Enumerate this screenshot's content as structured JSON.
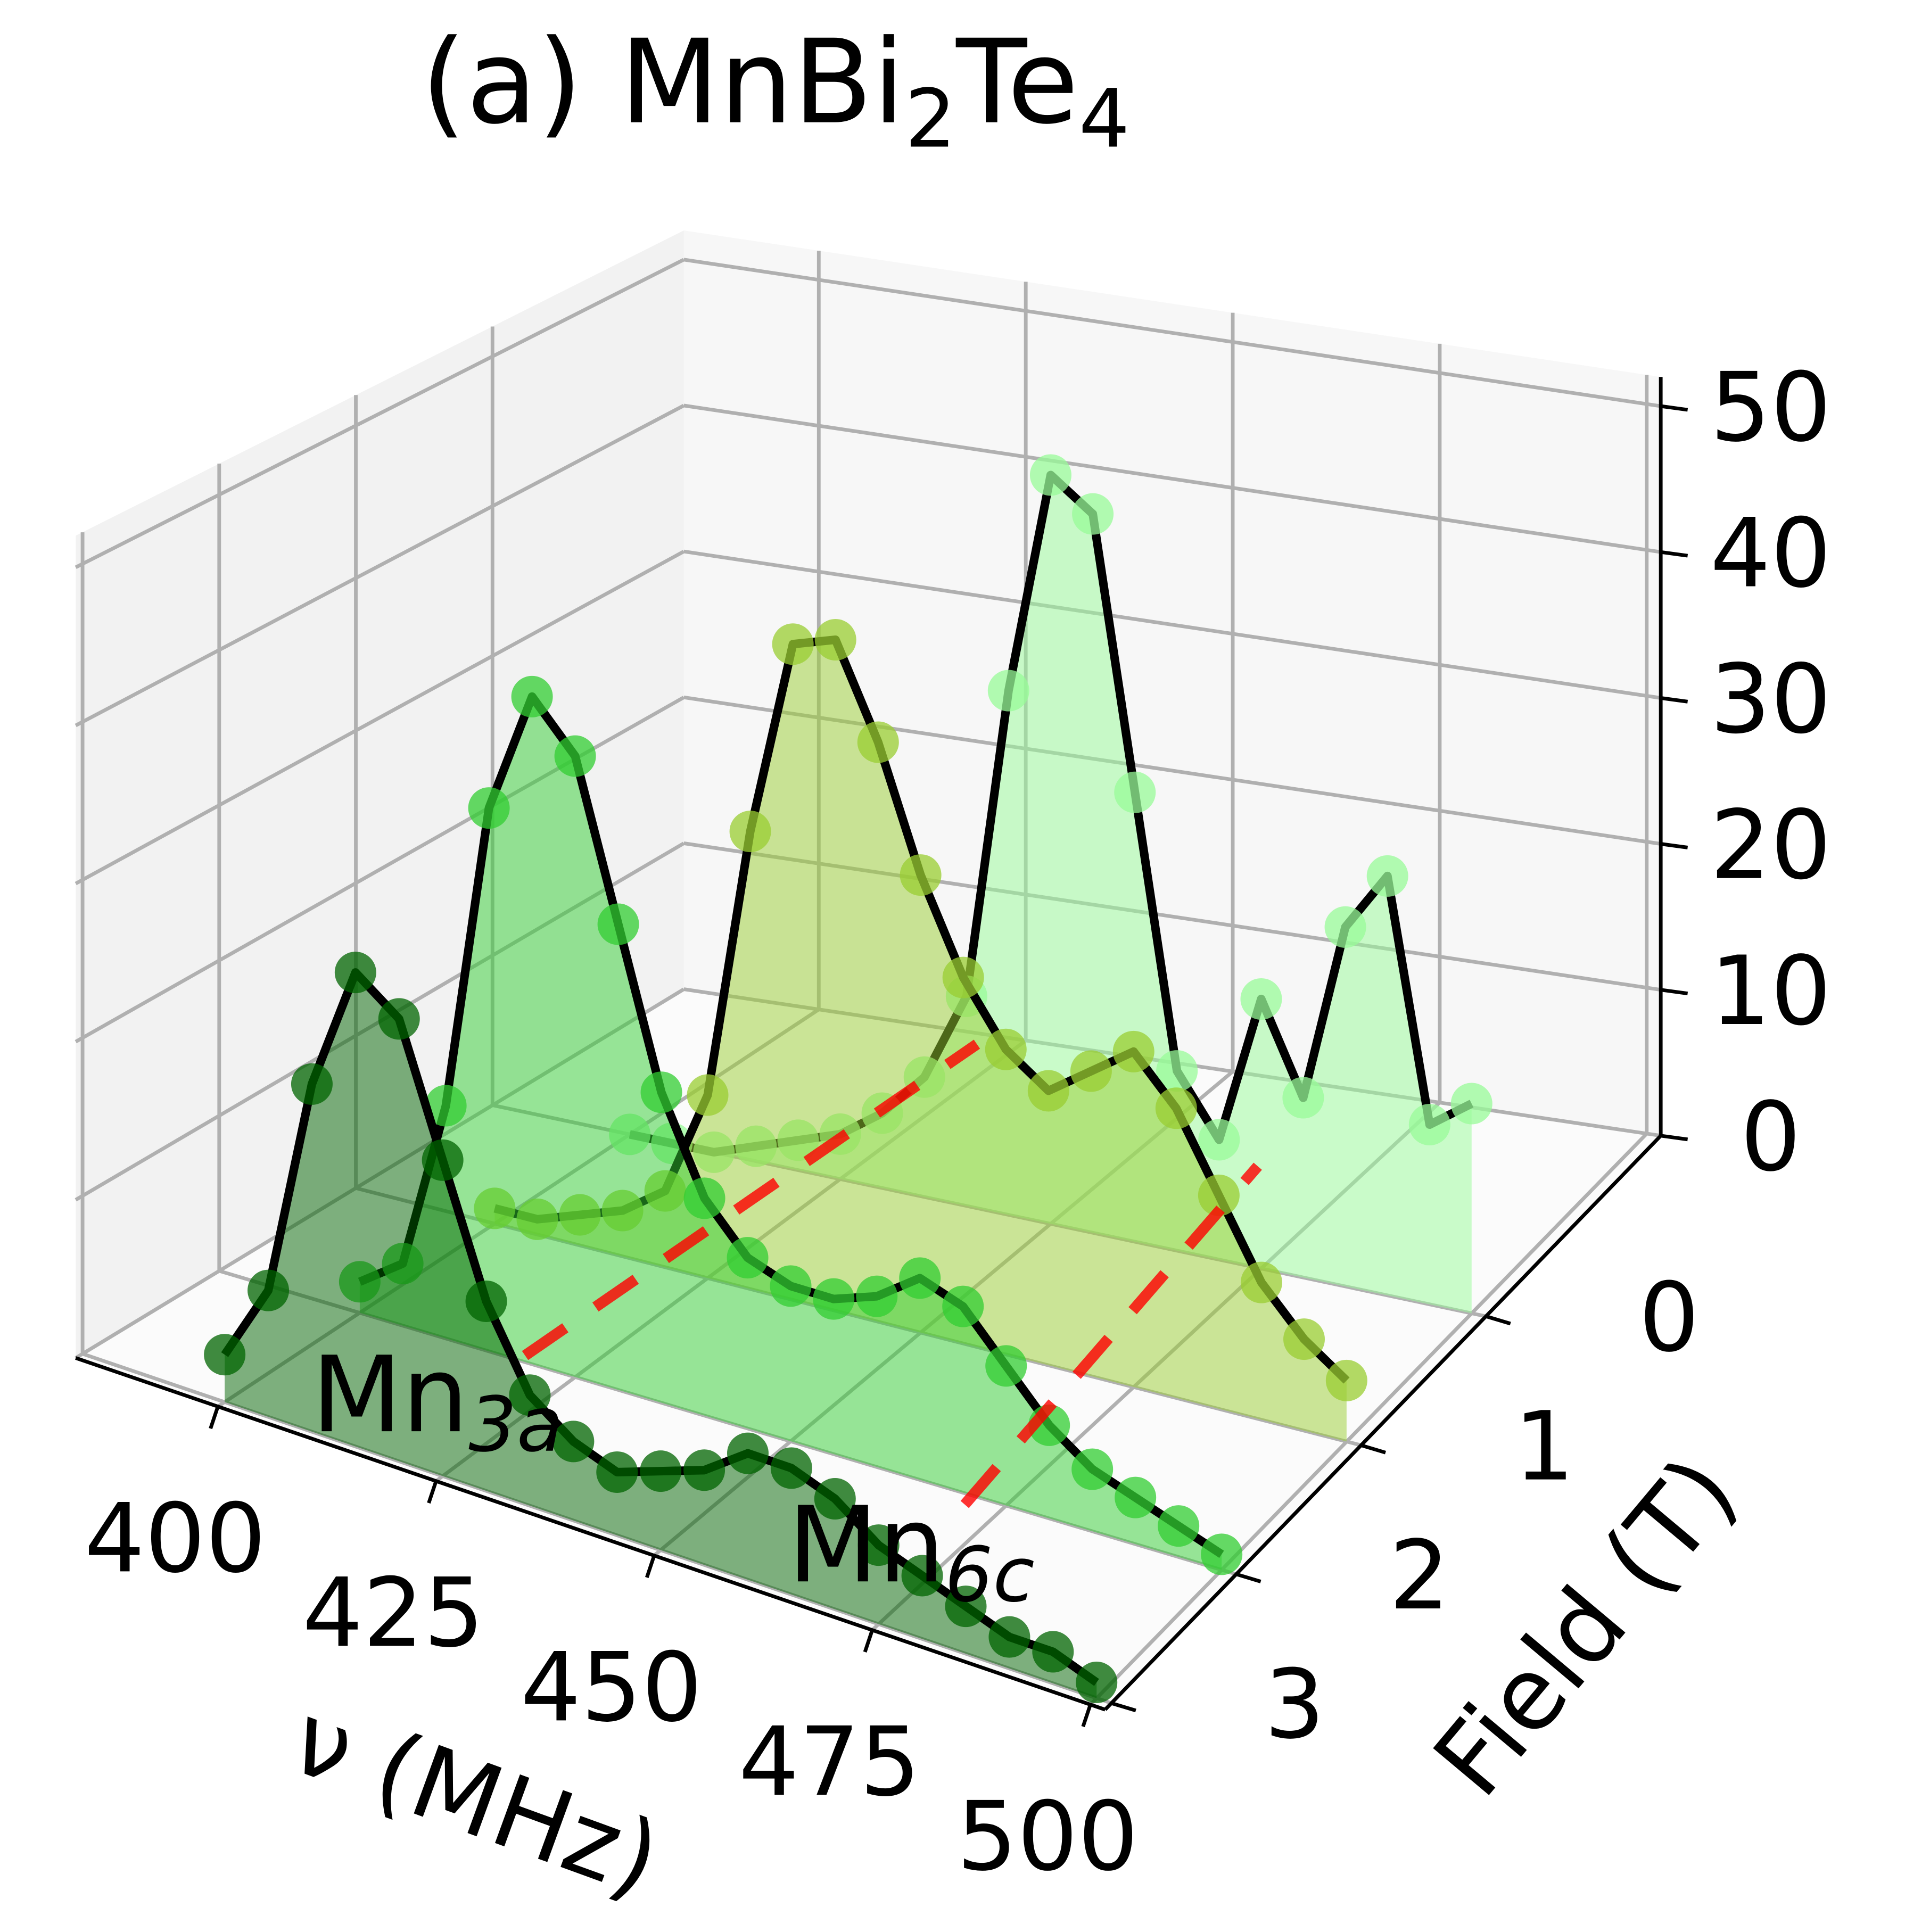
{
  "chart_data": {
    "type": "waterfall3d",
    "title": [
      "(a) MnBi",
      "2",
      "Te",
      "4"
    ],
    "xlabel": "ν (MHz)",
    "ylabel": "Field (T)",
    "x": [
      400,
      405,
      410,
      415,
      420,
      425,
      430,
      435,
      440,
      445,
      450,
      455,
      460,
      465,
      470,
      475,
      480,
      485,
      490,
      495,
      500
    ],
    "xlim": [
      383.7,
      501.7
    ],
    "xticks": [
      400,
      425,
      450,
      475,
      500
    ],
    "ylim": [
      -1.4,
      3.05
    ],
    "yticks": [
      0,
      1,
      2,
      3
    ],
    "zlim": [
      0,
      52
    ],
    "zticks": [
      0,
      10,
      20,
      30,
      40,
      50
    ],
    "grid": true,
    "series": [
      {
        "field": 0,
        "color": "#98fb98",
        "values": [
          0,
          0,
          0,
          1,
          2,
          3,
          5,
          8,
          14,
          35,
          50,
          48,
          30,
          12,
          8,
          18,
          12,
          24,
          28,
          12,
          14
        ]
      },
      {
        "field": 1,
        "color": "#9acd32",
        "values": [
          1,
          1,
          2,
          3,
          5,
          12,
          30,
          43,
          44,
          38,
          30,
          24,
          20,
          18,
          20,
          22,
          19,
          14,
          9,
          6,
          4
        ]
      },
      {
        "field": 2,
        "color": "#32cd32",
        "values": [
          2,
          4,
          15,
          35,
          43,
          40,
          30,
          20,
          14,
          11,
          10,
          10,
          11,
          13,
          12,
          9,
          6,
          4,
          3,
          2,
          1
        ]
      },
      {
        "field": 3,
        "color": "#006400",
        "values": [
          3,
          8,
          22,
          30,
          28,
          20,
          12,
          7,
          5,
          4,
          5,
          6,
          8,
          8,
          7,
          5,
          4,
          3,
          2,
          2,
          1
        ]
      }
    ],
    "annotations": [
      {
        "text": "Mn",
        "sub": "3a"
      },
      {
        "text": "Mn",
        "sub": "6c"
      }
    ]
  }
}
